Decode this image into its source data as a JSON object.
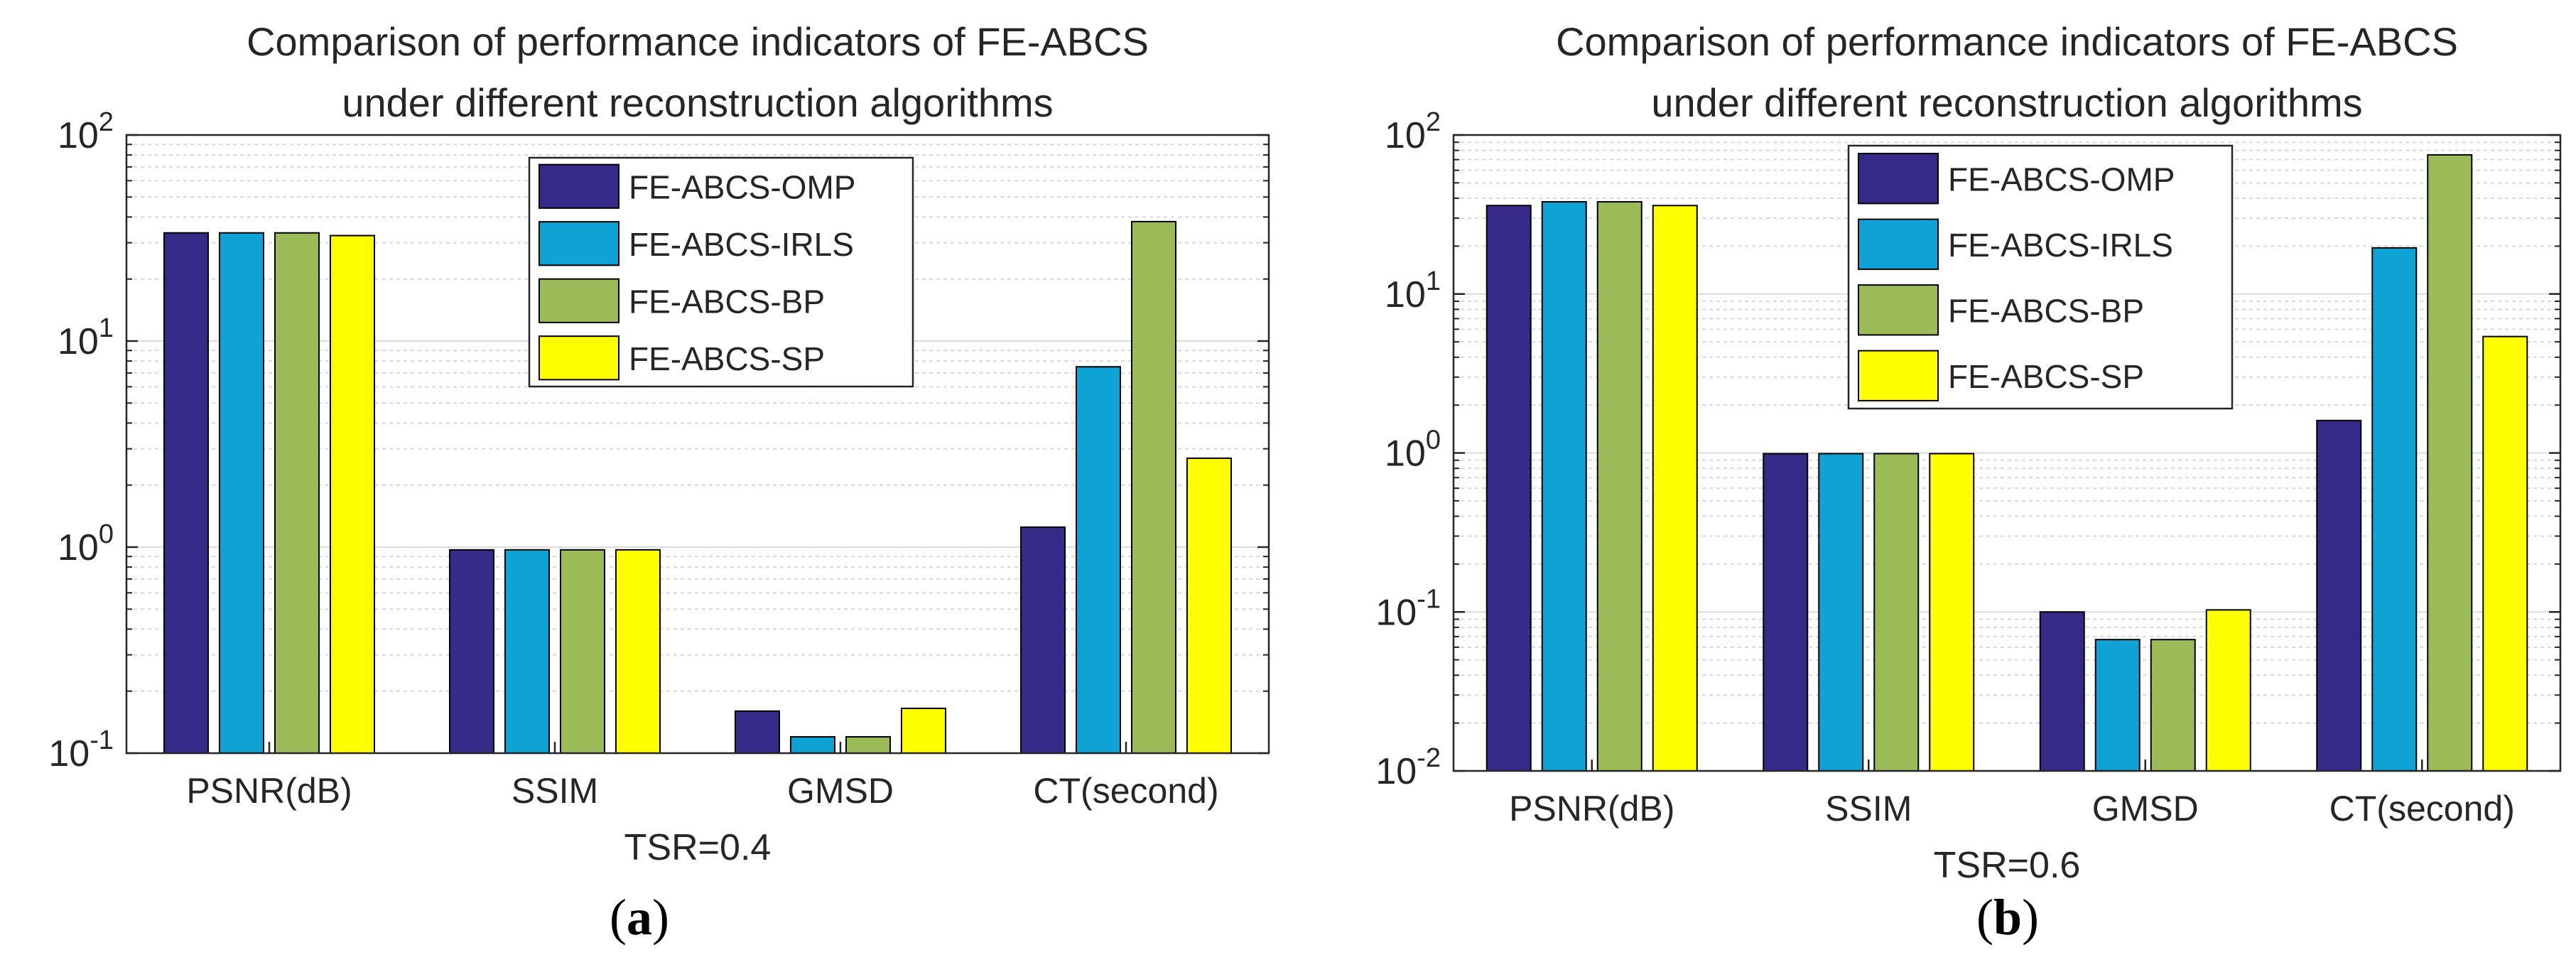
{
  "figure": {
    "caption_a": "a",
    "caption_b": "b"
  },
  "legend": [
    {
      "name": "FE-ABCS-OMP",
      "color": "#352A87"
    },
    {
      "name": "FE-ABCS-IRLS",
      "color": "#0FA2D4"
    },
    {
      "name": "FE-ABCS-BP",
      "color": "#9BBB59"
    },
    {
      "name": "FE-ABCS-SP",
      "color": "#FFFF00"
    }
  ],
  "chart_data": [
    {
      "id": "a",
      "type": "bar",
      "yscale": "log",
      "title": [
        "Comparison of performance indicators of FE-ABCS",
        "under different reconstruction algorithms"
      ],
      "xlabel": "TSR=0.4",
      "ylabel": "",
      "categories": [
        "PSNR(dB)",
        "SSIM",
        "GMSD",
        "CT(second)"
      ],
      "ylim": [
        0.1,
        100
      ],
      "yticks": [
        {
          "base": "10",
          "exp": "-1"
        },
        {
          "base": "10",
          "exp": "0"
        },
        {
          "base": "10",
          "exp": "1"
        },
        {
          "base": "10",
          "exp": "2"
        }
      ],
      "legend_position": "top-center",
      "grid": true,
      "series": [
        {
          "name": "FE-ABCS-OMP",
          "values": [
            33.5,
            0.97,
            0.16,
            1.25
          ]
        },
        {
          "name": "FE-ABCS-IRLS",
          "values": [
            33.5,
            0.97,
            0.12,
            7.5
          ]
        },
        {
          "name": "FE-ABCS-BP",
          "values": [
            33.5,
            0.97,
            0.12,
            38
          ]
        },
        {
          "name": "FE-ABCS-SP",
          "values": [
            32.5,
            0.97,
            0.165,
            2.7
          ]
        }
      ]
    },
    {
      "id": "b",
      "type": "bar",
      "yscale": "log",
      "title": [
        "Comparison of performance indicators of FE-ABCS",
        "under different reconstruction algorithms"
      ],
      "xlabel": "TSR=0.6",
      "ylabel": "",
      "categories": [
        "PSNR(dB)",
        "SSIM",
        "GMSD",
        "CT(second)"
      ],
      "ylim": [
        0.01,
        100
      ],
      "yticks": [
        {
          "base": "10",
          "exp": "-2"
        },
        {
          "base": "10",
          "exp": "-1"
        },
        {
          "base": "10",
          "exp": "0"
        },
        {
          "base": "10",
          "exp": "1"
        },
        {
          "base": "10",
          "exp": "2"
        }
      ],
      "legend_position": "top-center",
      "grid": true,
      "series": [
        {
          "name": "FE-ABCS-OMP",
          "values": [
            36,
            0.99,
            0.1,
            1.6
          ]
        },
        {
          "name": "FE-ABCS-IRLS",
          "values": [
            38,
            0.99,
            0.067,
            19.5
          ]
        },
        {
          "name": "FE-ABCS-BP",
          "values": [
            38,
            0.99,
            0.067,
            75
          ]
        },
        {
          "name": "FE-ABCS-SP",
          "values": [
            36,
            0.99,
            0.103,
            5.4
          ]
        }
      ]
    }
  ]
}
